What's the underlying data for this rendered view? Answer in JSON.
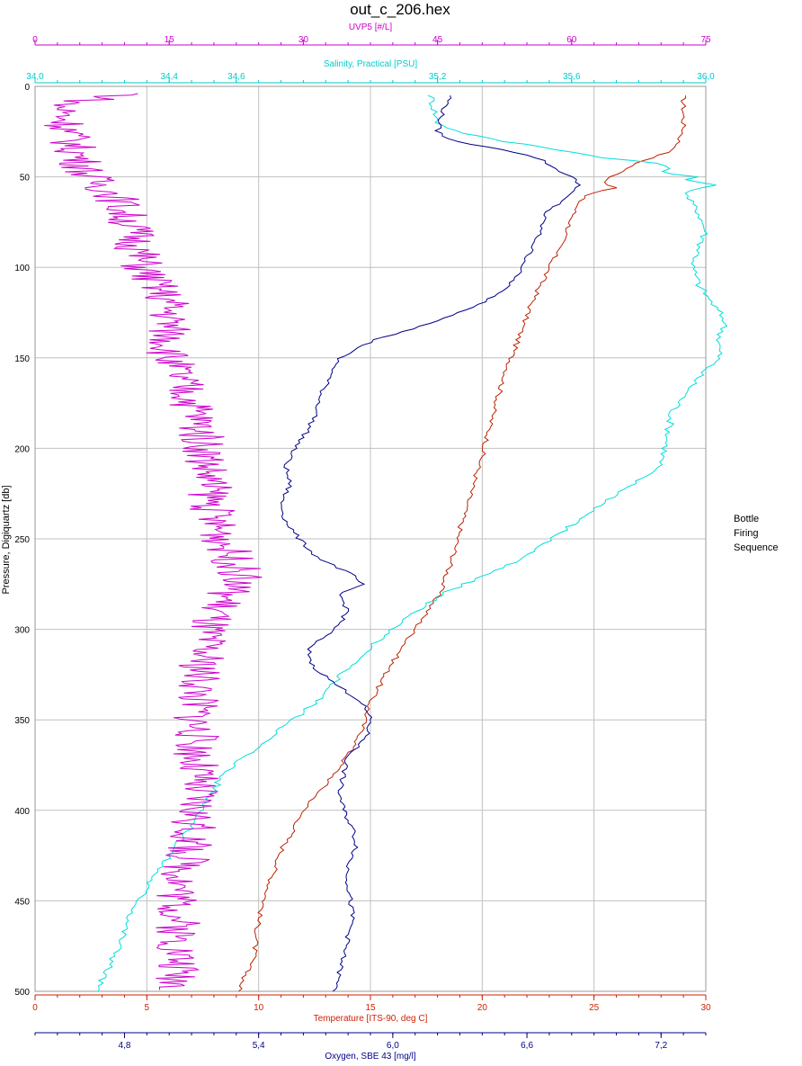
{
  "chart_data": {
    "type": "line",
    "title": "out_c_206.hex",
    "legend_block": [
      "Bottle",
      "Firing",
      "Sequence"
    ],
    "grid": true,
    "y_axis": {
      "label": "Pressure, Digiquartz [db]",
      "range": [
        0,
        500
      ],
      "inverted": true,
      "ticks": [
        "0",
        "50",
        "100",
        "150",
        "200",
        "250",
        "300",
        "350",
        "400",
        "450",
        "500"
      ]
    },
    "axes": {
      "uvp": {
        "label": "UVP5 [#/L]",
        "color": "#cc00cc",
        "position": "top-outer",
        "range": [
          0,
          75
        ],
        "ticks": [
          "0",
          "15",
          "30",
          "45",
          "60",
          "75"
        ]
      },
      "salinity": {
        "label": "Salinity, Practical [PSU]",
        "color": "#00cccc",
        "position": "top-inner",
        "range": [
          34.0,
          36.0
        ],
        "ticks": [
          "34,0",
          "34,4",
          "34,6",
          "35,2",
          "35,6",
          "36,0"
        ]
      },
      "temperature": {
        "label": "Temperature [ITS-90, deg C]",
        "color": "#cc2200",
        "position": "bottom-inner",
        "range": [
          0,
          30
        ],
        "ticks": [
          "0",
          "5",
          "10",
          "15",
          "20",
          "25",
          "30"
        ]
      },
      "oxygen": {
        "label": "Oxygen, SBE 43 [mg/l]",
        "color": "#000088",
        "position": "bottom-outer",
        "range": [
          4.4,
          7.4
        ],
        "ticks": [
          "4,8",
          "5,4",
          "6,0",
          "6,6",
          "7,2"
        ]
      }
    },
    "series": [
      {
        "name": "Temperature",
        "axis": "temperature",
        "color": "#bb2200",
        "pressure": [
          5,
          25,
          35,
          42,
          50,
          53,
          56,
          60,
          65,
          70,
          80,
          100,
          120,
          140,
          160,
          180,
          200,
          220,
          240,
          260,
          280,
          300,
          320,
          340,
          360,
          380,
          400,
          410,
          420,
          440,
          460,
          480,
          500
        ],
        "values": [
          29.0,
          29.0,
          28.6,
          27.0,
          25.8,
          25.5,
          25.9,
          24.6,
          24.3,
          24.1,
          23.8,
          23.0,
          22.2,
          21.6,
          21.0,
          20.5,
          20.1,
          19.6,
          19.1,
          18.7,
          18.1,
          17.0,
          15.9,
          15.0,
          14.5,
          13.4,
          12.0,
          11.6,
          11.1,
          10.5,
          10.0,
          9.8,
          9.1
        ]
      },
      {
        "name": "Salinity",
        "axis": "salinity",
        "color": "#00dddd",
        "pressure": [
          5,
          20,
          25,
          30,
          33,
          37,
          40,
          42,
          45,
          48,
          50,
          52,
          55,
          57,
          60,
          70,
          80,
          100,
          110,
          120,
          130,
          140,
          150,
          160,
          180,
          200,
          210,
          220,
          240,
          260,
          280,
          300,
          320,
          340,
          360,
          380,
          400,
          420,
          440,
          460,
          480,
          500
        ],
        "values": [
          35.18,
          35.2,
          35.26,
          35.38,
          35.5,
          35.62,
          35.72,
          35.84,
          35.9,
          35.86,
          35.98,
          35.94,
          36.04,
          35.96,
          35.94,
          35.98,
          36.0,
          35.96,
          35.98,
          36.02,
          36.06,
          36.04,
          36.04,
          35.98,
          35.9,
          35.88,
          35.86,
          35.78,
          35.62,
          35.46,
          35.22,
          35.06,
          34.94,
          34.84,
          34.7,
          34.56,
          34.5,
          34.42,
          34.34,
          34.28,
          34.24,
          34.18
        ]
      },
      {
        "name": "Oxygen",
        "axis": "oxygen",
        "color": "#000088",
        "pressure": [
          5,
          15,
          25,
          30,
          35,
          40,
          45,
          50,
          55,
          60,
          65,
          70,
          80,
          90,
          100,
          110,
          120,
          130,
          140,
          145,
          150,
          160,
          170,
          180,
          190,
          200,
          210,
          220,
          230,
          240,
          250,
          260,
          270,
          275,
          280,
          290,
          300,
          310,
          320,
          330,
          340,
          350,
          360,
          370,
          380,
          390,
          400,
          410,
          420,
          430,
          440,
          460,
          480,
          500
        ],
        "values": [
          6.26,
          6.22,
          6.2,
          6.26,
          6.5,
          6.66,
          6.72,
          6.8,
          6.84,
          6.78,
          6.74,
          6.68,
          6.66,
          6.62,
          6.58,
          6.52,
          6.4,
          6.2,
          5.92,
          5.84,
          5.76,
          5.72,
          5.68,
          5.66,
          5.62,
          5.56,
          5.52,
          5.54,
          5.5,
          5.52,
          5.58,
          5.66,
          5.82,
          5.86,
          5.76,
          5.8,
          5.74,
          5.62,
          5.64,
          5.74,
          5.86,
          5.9,
          5.88,
          5.8,
          5.78,
          5.76,
          5.78,
          5.82,
          5.84,
          5.8,
          5.8,
          5.82,
          5.78,
          5.74
        ]
      },
      {
        "name": "UVP5",
        "axis": "uvp",
        "color": "#cc00cc",
        "pressure": [
          4,
          10,
          30,
          50,
          60,
          80,
          100,
          120,
          150,
          180,
          200,
          240,
          270,
          300,
          350,
          400,
          450,
          500
        ],
        "values": [
          11,
          3,
          4,
          6,
          9,
          11,
          12,
          15,
          15,
          18,
          19,
          20,
          23,
          19,
          18,
          18,
          16,
          16
        ]
      }
    ]
  }
}
